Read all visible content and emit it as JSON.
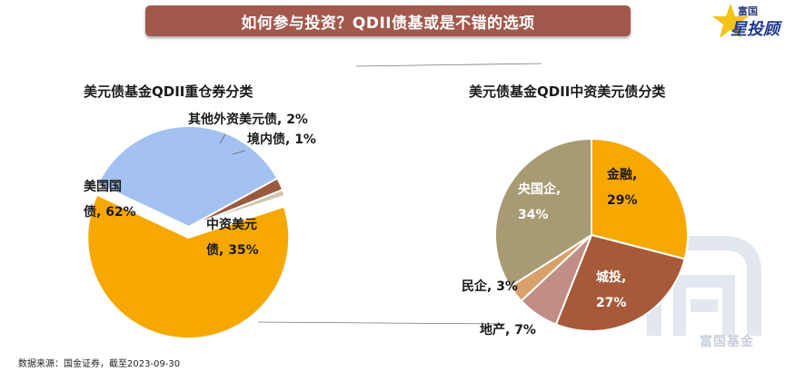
{
  "header": {
    "title": "如何参与投资？QDII债基或是不错的选项"
  },
  "brand": {
    "logo_line1": "富国",
    "logo_line2": "星投顾",
    "watermark_text": "富国基金",
    "icon": "star-icon"
  },
  "source_note": "数据来源：国金证券，截至2023-09-30",
  "colors": {
    "banner": "#a4584d",
    "gold": "#f6a800",
    "light_blue": "#a3c2f2",
    "brown": "#9a5a40",
    "khaki": "#a89a73",
    "rust": "#a65a3a",
    "tan": "#d8a06a",
    "rose": "#c08e84"
  },
  "chart_data": [
    {
      "type": "pie",
      "title": "美元债基金QDII重仓券分类",
      "categories": [
        "美国国债",
        "中资美元债",
        "其他外资美元债",
        "境内债"
      ],
      "values": [
        62,
        35,
        2,
        1
      ],
      "labels": [
        "美国国\n债, 62%",
        "中资美元\n债, 35%",
        "其他外资美元债, 2%",
        "境内债, 1%"
      ],
      "colors": [
        "#f6a800",
        "#a3c2f2",
        "#9a5a40",
        "#d1c5a9"
      ]
    },
    {
      "type": "pie",
      "title": "美元债基金QDII中资美元债分类",
      "categories": [
        "金融",
        "城投",
        "地产",
        "民企",
        "央国企"
      ],
      "values": [
        29,
        27,
        7,
        3,
        34
      ],
      "labels": [
        "金融,\n29%",
        "城投,\n27%",
        "地产, 7%",
        "民企, 3%",
        "央国企,\n34%"
      ],
      "colors": [
        "#f6a800",
        "#a65a3a",
        "#c08e84",
        "#d8a06a",
        "#a89a73"
      ]
    }
  ]
}
